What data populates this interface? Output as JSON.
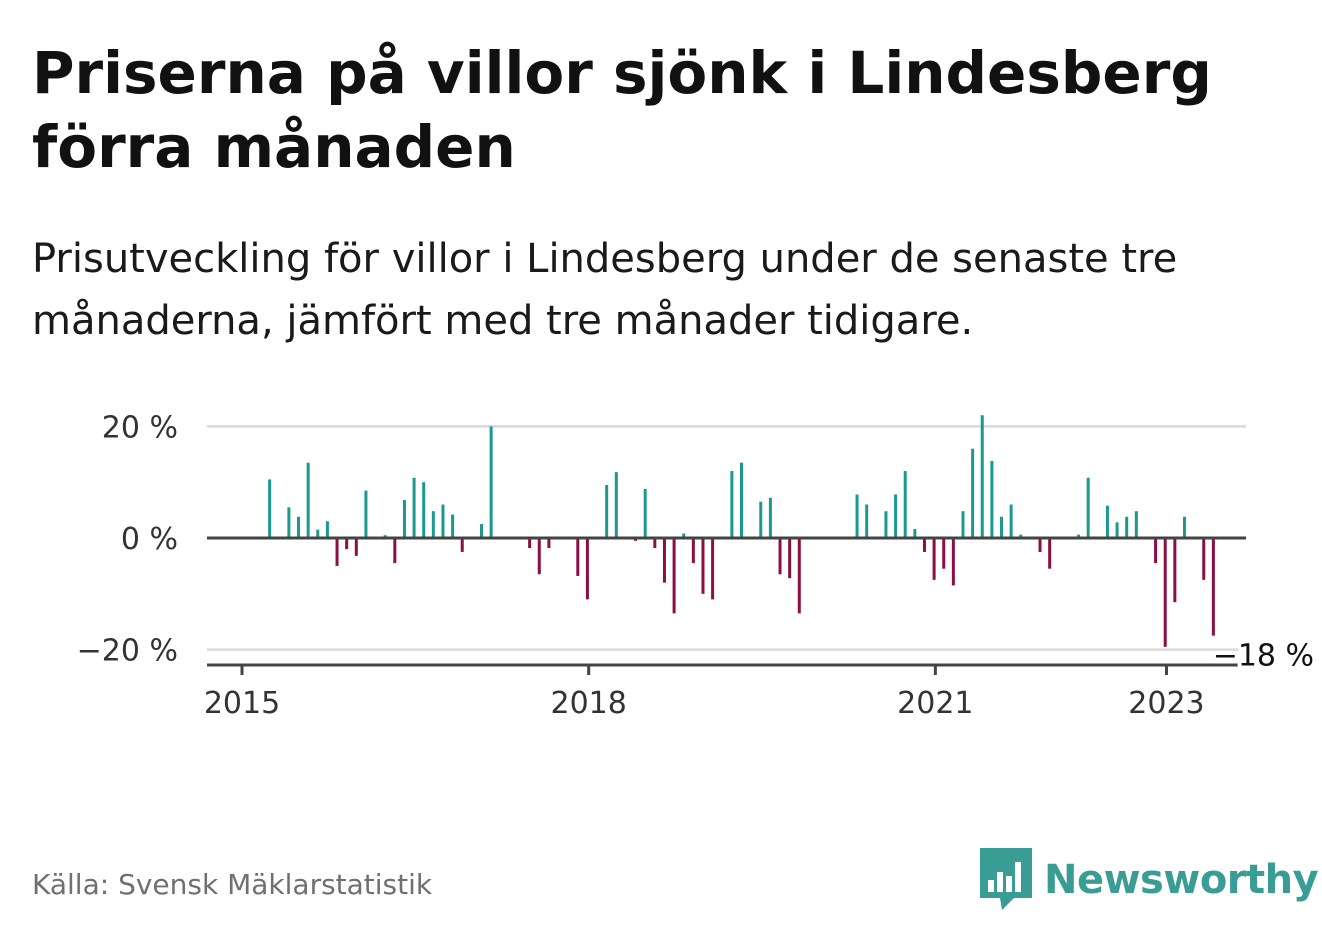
{
  "title": "Priserna på villor sjönk i Lindesberg förra månaden",
  "subtitle": "Prisutveckling för villor i Lindesberg under de senaste tre månaderna, jämfört med tre månader tidigare.",
  "source": "Källa: Svensk Mäklarstatistik",
  "logo": {
    "name": "Newsworthy",
    "icon": "newsworthy-bar-chart-icon"
  },
  "colors": {
    "positive": "#1a9a8f",
    "negative": "#8b0f45",
    "grid": "#d9d9d9",
    "axis": "#444444",
    "brand": "#3a9d95"
  },
  "chart_data": {
    "type": "bar",
    "title": "",
    "xlabel": "",
    "ylabel": "",
    "ylim": [
      -23,
      22
    ],
    "yticks": [
      20,
      0,
      -20
    ],
    "ytick_labels": [
      "20 %",
      "0 %",
      "−20 %"
    ],
    "xticks": [
      {
        "label": "2015",
        "year": 2015
      },
      {
        "label": "2018",
        "year": 2018
      },
      {
        "label": "2021",
        "year": 2021
      },
      {
        "label": "2023",
        "year": 2023
      }
    ],
    "grid": true,
    "legend": "none",
    "last_value_label": "−18 %",
    "start_year": 2015,
    "start_month": 1,
    "values": [
      0,
      10.5,
      0,
      5.5,
      3.8,
      13.5,
      1.5,
      3,
      -5,
      -2,
      -3.2,
      8.5,
      0,
      0.5,
      -4.5,
      6.8,
      10.8,
      10,
      4.8,
      6,
      4.2,
      -2.5,
      0,
      2.5,
      20,
      0,
      0,
      0,
      -1.8,
      -6.5,
      -1.8,
      0,
      0,
      -6.8,
      -11,
      0,
      9.5,
      11.8,
      0,
      -0.5,
      8.8,
      -1.8,
      -8,
      -13.5,
      0.8,
      -4.5,
      -10,
      -11,
      0,
      12,
      13.5,
      0,
      6.5,
      7.2,
      -6.5,
      -7.2,
      -13.5,
      0,
      0,
      0,
      0,
      0,
      7.8,
      6,
      0,
      4.8,
      7.8,
      12,
      1.6,
      -2.5,
      -7.5,
      -5.5,
      -8.5,
      4.8,
      16,
      22,
      13.8,
      3.8,
      6,
      0.6,
      0,
      -2.5,
      -5.5,
      0,
      0,
      0.6,
      10.8,
      0,
      5.8,
      2.8,
      3.8,
      4.8,
      0,
      -4.5,
      -19.5,
      -11.5,
      3.8,
      0,
      -7.5,
      -17.5
    ]
  }
}
